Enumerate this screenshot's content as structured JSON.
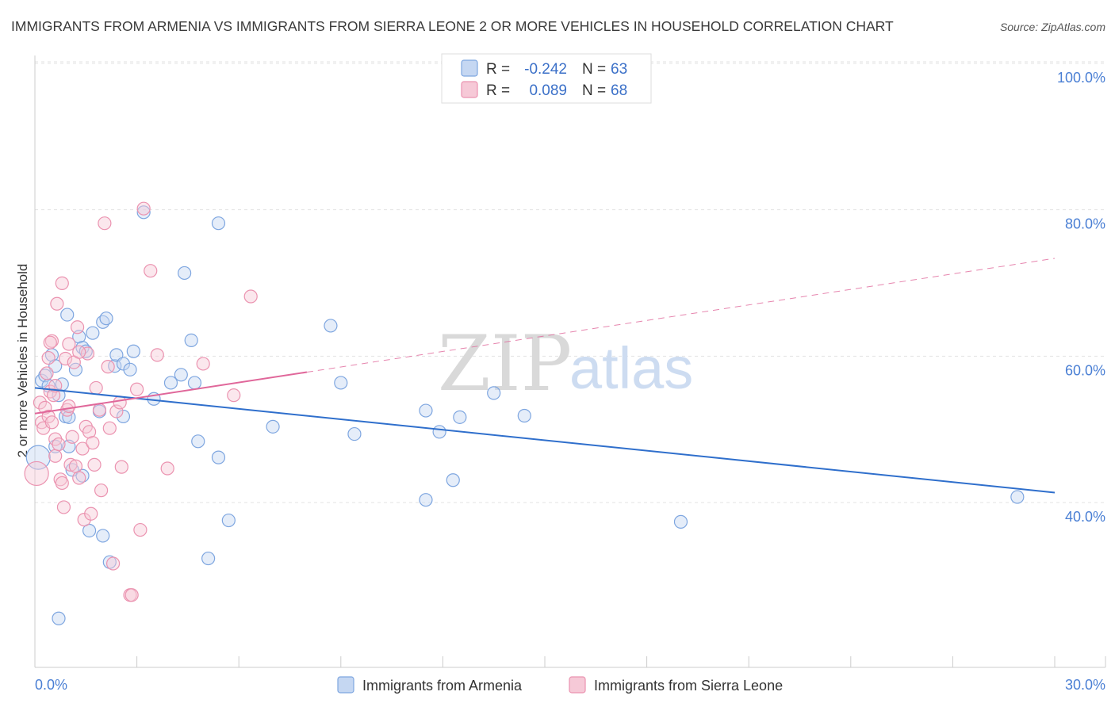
{
  "chart_data": {
    "type": "scatter",
    "title": "IMMIGRANTS FROM ARMENIA VS IMMIGRANTS FROM SIERRA LEONE 2 OR MORE VEHICLES IN HOUSEHOLD CORRELATION CHART",
    "source": "Source: ZipAtlas.com",
    "xlabel": "",
    "ylabel": "2 or more Vehicles in Household",
    "xlim": [
      0,
      30
    ],
    "ylim": [
      20,
      100
    ],
    "x_ticks": {
      "min_label": "0.0%",
      "max_label": "30.0%"
    },
    "y_ticks": [
      {
        "value": 100,
        "label": "100.0%"
      },
      {
        "value": 80,
        "label": "80.0%"
      },
      {
        "value": 60,
        "label": "60.0%"
      },
      {
        "value": 40,
        "label": "40.0%"
      }
    ],
    "grid": "horizontal dashed",
    "legend_position": "bottom",
    "stats_box": [
      {
        "r_label": "R =",
        "r_value": "-0.242",
        "n_label": "N =",
        "n_value": "63"
      },
      {
        "r_label": "R =",
        "r_value": "0.089",
        "n_label": "N =",
        "n_value": "68"
      }
    ],
    "watermark": {
      "zip": "ZIP",
      "atlas": "atlas"
    },
    "series": [
      {
        "name": "Immigrants from Armenia",
        "color": "#7ea6e0",
        "fill": "#c5d7f2",
        "trend_color": "#2f6fcc",
        "trend": {
          "x0": 0.0,
          "y0": 57.5,
          "x1": 30.0,
          "y1": 43.2,
          "dashed_from": null
        },
        "points": [
          [
            0.1,
            48.0,
            "big"
          ],
          [
            0.2,
            58.5
          ],
          [
            0.3,
            59.2
          ],
          [
            0.4,
            57.8
          ],
          [
            0.5,
            62.0
          ],
          [
            0.6,
            60.5
          ],
          [
            0.6,
            49.5
          ],
          [
            0.7,
            56.5
          ],
          [
            0.8,
            58.0
          ],
          [
            0.9,
            53.6
          ],
          [
            0.95,
            67.5
          ],
          [
            1.0,
            53.5
          ],
          [
            1.0,
            49.5
          ],
          [
            1.1,
            46.3
          ],
          [
            1.2,
            60.0
          ],
          [
            1.3,
            64.5
          ],
          [
            1.4,
            45.5
          ],
          [
            1.4,
            63.0
          ],
          [
            1.5,
            62.5
          ],
          [
            1.6,
            38.0
          ],
          [
            1.7,
            65.0
          ],
          [
            1.9,
            54.3
          ],
          [
            2.0,
            66.5
          ],
          [
            2.0,
            37.3
          ],
          [
            2.1,
            67.0
          ],
          [
            2.2,
            33.7
          ],
          [
            2.35,
            60.5
          ],
          [
            2.4,
            62.0
          ],
          [
            2.6,
            60.8
          ],
          [
            2.6,
            53.6
          ],
          [
            2.8,
            60.0
          ],
          [
            2.9,
            62.5
          ],
          [
            3.2,
            81.5
          ],
          [
            3.5,
            56.0
          ],
          [
            4.0,
            58.2
          ],
          [
            4.3,
            59.3
          ],
          [
            4.4,
            73.2
          ],
          [
            4.6,
            64.0
          ],
          [
            4.7,
            58.2
          ],
          [
            4.8,
            50.2
          ],
          [
            5.1,
            34.2
          ],
          [
            5.4,
            80.0
          ],
          [
            5.4,
            48.0
          ],
          [
            5.7,
            39.4
          ],
          [
            7.0,
            52.2
          ],
          [
            8.7,
            66.0
          ],
          [
            9.0,
            58.2
          ],
          [
            9.4,
            51.2
          ],
          [
            11.5,
            54.4
          ],
          [
            11.5,
            42.2
          ],
          [
            11.9,
            51.5
          ],
          [
            12.3,
            44.9
          ],
          [
            12.5,
            53.5
          ],
          [
            13.5,
            56.8
          ],
          [
            14.4,
            53.7
          ],
          [
            19.0,
            39.2
          ],
          [
            28.9,
            42.6
          ],
          [
            0.7,
            26.0
          ]
        ]
      },
      {
        "name": "Immigrants from Sierra Leone",
        "color": "#eb93b0",
        "fill": "#f6c9d7",
        "trend_color": "#e0679a",
        "trend": {
          "x0": 0.0,
          "y0": 54.0,
          "x1": 30.0,
          "y1": 75.2,
          "dashed_from": 8.0
        },
        "points": [
          [
            0.05,
            45.8,
            "big"
          ],
          [
            0.15,
            55.5
          ],
          [
            0.2,
            52.8
          ],
          [
            0.25,
            52.0
          ],
          [
            0.3,
            54.8
          ],
          [
            0.35,
            59.5
          ],
          [
            0.4,
            53.6
          ],
          [
            0.45,
            57.0
          ],
          [
            0.5,
            52.8
          ],
          [
            0.55,
            56.5
          ],
          [
            0.6,
            57.8
          ],
          [
            0.6,
            48.2
          ],
          [
            0.6,
            50.5
          ],
          [
            0.65,
            69.0
          ],
          [
            0.7,
            49.8
          ],
          [
            0.75,
            45.0
          ],
          [
            0.8,
            71.8
          ],
          [
            0.8,
            44.5
          ],
          [
            0.85,
            41.2
          ],
          [
            0.9,
            61.5
          ],
          [
            0.95,
            54.5
          ],
          [
            1.0,
            55.0
          ],
          [
            1.0,
            63.5
          ],
          [
            1.05,
            47.0
          ],
          [
            1.1,
            50.8
          ],
          [
            1.15,
            61.0
          ],
          [
            1.2,
            46.8
          ],
          [
            1.25,
            65.8
          ],
          [
            1.3,
            45.2
          ],
          [
            1.4,
            49.2
          ],
          [
            1.45,
            39.5
          ],
          [
            1.5,
            52.2
          ],
          [
            1.55,
            62.2
          ],
          [
            1.6,
            51.5
          ],
          [
            1.65,
            40.3
          ],
          [
            1.7,
            50.0
          ],
          [
            1.75,
            47.0
          ],
          [
            1.8,
            57.5
          ],
          [
            1.9,
            54.5
          ],
          [
            1.95,
            43.5
          ],
          [
            2.05,
            80.0
          ],
          [
            2.15,
            60.4
          ],
          [
            2.2,
            52.0
          ],
          [
            2.3,
            33.5
          ],
          [
            2.4,
            54.3
          ],
          [
            2.5,
            55.5
          ],
          [
            2.55,
            46.7
          ],
          [
            2.8,
            29.2
          ],
          [
            2.85,
            29.2
          ],
          [
            3.0,
            57.3
          ],
          [
            3.1,
            38.1
          ],
          [
            3.2,
            82.0
          ],
          [
            3.4,
            73.5
          ],
          [
            3.6,
            62.0
          ],
          [
            3.9,
            46.5
          ],
          [
            4.95,
            60.8
          ],
          [
            5.85,
            56.5
          ],
          [
            6.35,
            70.0
          ],
          [
            0.4,
            61.6
          ],
          [
            0.5,
            63.9
          ],
          [
            0.45,
            63.7
          ],
          [
            1.3,
            62.4
          ]
        ]
      }
    ]
  }
}
